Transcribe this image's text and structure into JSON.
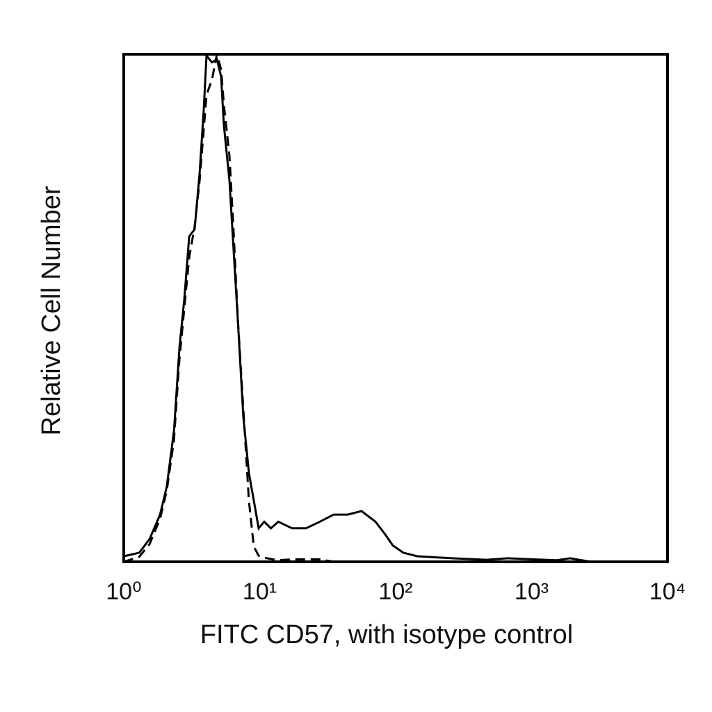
{
  "chart_data": {
    "type": "line",
    "x_label": "FITC CD57, with isotype control",
    "y_label": "Relative Cell Number",
    "xscale": "log",
    "xlim": [
      1,
      10000
    ],
    "xticks": [
      {
        "value": 1,
        "label": "10⁰"
      },
      {
        "value": 10,
        "label": "10¹"
      },
      {
        "value": 100,
        "label": "10²"
      },
      {
        "value": 1000,
        "label": "10³"
      },
      {
        "value": 10000,
        "label": "10⁴"
      }
    ],
    "ylim": [
      0,
      100
    ],
    "grid": false,
    "series": [
      {
        "color": "#000000",
        "style": "solid",
        "x": [
          1,
          1.3,
          1.55,
          1.85,
          2.07,
          2.34,
          2.57,
          2.79,
          3.03,
          3.32,
          3.61,
          3.87,
          4.06,
          4.46,
          4.84,
          5.2,
          5.45,
          5.99,
          6.43,
          6.9,
          7.58,
          8.33,
          9.05,
          9.83,
          10.8,
          12.1,
          13.7,
          17.3,
          21.9,
          27.7,
          35,
          44.4,
          56.1,
          71.1,
          84.8,
          95.4,
          114,
          144,
          260,
          468,
          666,
          1520,
          1920,
          2740,
          10000
        ],
        "values": [
          1.1,
          1.8,
          4.5,
          9.3,
          14.8,
          25.8,
          42.2,
          51.8,
          64.1,
          65.5,
          76.4,
          88.8,
          99.7,
          98.4,
          99,
          95.6,
          86,
          75.1,
          61.4,
          47.7,
          28.5,
          17.5,
          12.1,
          6.6,
          7.9,
          6.6,
          7.9,
          6.6,
          6.6,
          7.9,
          9.3,
          9.3,
          10,
          7.9,
          5.2,
          3.2,
          1.8,
          1.1,
          0.7,
          0.4,
          0.7,
          0.3,
          0.7,
          0,
          0
        ]
      },
      {
        "color": "#000000",
        "style": "dashed",
        "x": [
          1,
          1.3,
          1.55,
          1.85,
          2.07,
          2.34,
          2.57,
          2.79,
          3.03,
          3.32,
          3.61,
          3.87,
          4.06,
          4.46,
          4.84,
          5.2,
          5.45,
          5.99,
          6.43,
          6.9,
          7.58,
          8.33,
          9.05,
          9.83,
          10.8,
          13.7,
          17.3,
          27.7,
          35,
          10000
        ],
        "values": [
          0,
          1,
          3.5,
          8.5,
          14,
          24,
          40,
          50,
          60,
          66,
          75,
          85,
          92,
          95,
          100,
          97,
          90,
          80,
          65,
          48,
          30,
          12,
          3,
          1.2,
          0.8,
          0.3,
          0.5,
          0.5,
          0,
          0
        ]
      }
    ]
  }
}
